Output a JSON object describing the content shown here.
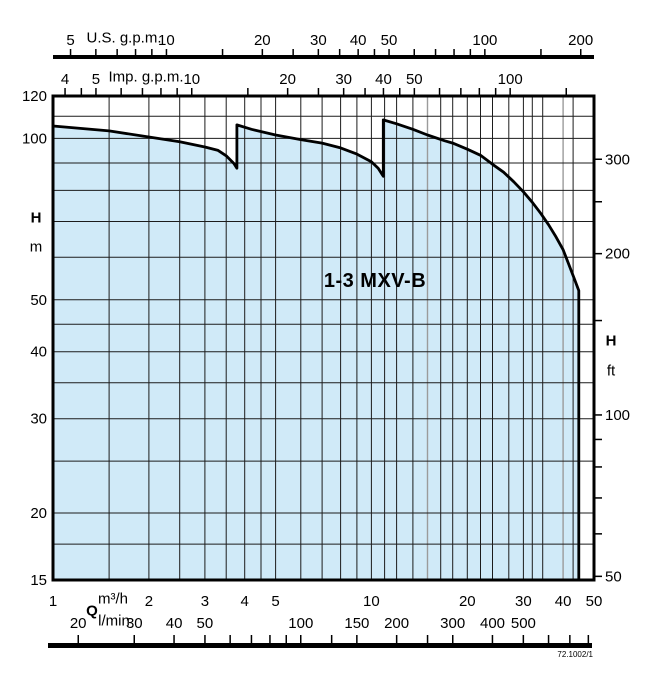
{
  "figure_code": "72.1002/1",
  "chart_data": {
    "type": "area",
    "title": "1-3 MXV-B",
    "description": "Pump family performance envelope, head H versus flow Q on log-log axes",
    "x_range_m3h": [
      1,
      50
    ],
    "y_range_m": [
      15,
      120
    ],
    "axes": {
      "us": {
        "title": "U.S. g.p.m.",
        "factor_m3h_per_unit": 0.227125,
        "ticks": [
          5,
          6,
          7,
          8,
          9,
          10,
          15,
          20,
          25,
          30,
          35,
          40,
          45,
          50,
          60,
          70,
          80,
          90,
          100,
          150,
          200
        ],
        "labels": [
          5,
          10,
          20,
          30,
          40,
          50,
          100,
          200
        ]
      },
      "imp": {
        "title": "Imp. g.p.m.",
        "factor_m3h_per_unit": 0.272766,
        "ticks": [
          4,
          4.5,
          5,
          6,
          7,
          8,
          9,
          10,
          15,
          20,
          25,
          30,
          35,
          40,
          45,
          50,
          60,
          70,
          80,
          90,
          100,
          150
        ],
        "labels": [
          4,
          5,
          10,
          20,
          30,
          40,
          50,
          100
        ]
      },
      "q": {
        "symbol": "Q",
        "unit_top": "m³/h",
        "unit_bottom": "l/min",
        "labels_m3h": [
          1,
          2,
          3,
          4,
          5,
          10,
          20,
          30,
          40,
          50
        ]
      },
      "lmin": {
        "factor_m3h_per_unit": 0.06,
        "ticks": [
          20,
          30,
          40,
          50,
          60,
          70,
          80,
          90,
          100,
          125,
          150,
          200,
          250,
          300,
          400,
          500,
          600,
          700,
          800
        ],
        "labels": [
          20,
          30,
          40,
          50,
          100,
          150,
          200,
          300,
          400,
          500
        ]
      },
      "h_left": {
        "symbol": "H",
        "unit": "m",
        "labels": [
          120,
          100,
          50,
          40,
          30,
          20,
          15
        ]
      },
      "h_right": {
        "symbol": "H",
        "unit": "ft",
        "factor_m_per_unit": 0.3048,
        "ticks": [
          50,
          60,
          70,
          80,
          90,
          100,
          150,
          200,
          250,
          300
        ],
        "labels": [
          300,
          200,
          100,
          50
        ]
      }
    },
    "grid": {
      "v_m3h_black": [
        1.5,
        2,
        2.5,
        3,
        3.5,
        4,
        4.5,
        5,
        6,
        7,
        8,
        9,
        10,
        11,
        12,
        13.5,
        16.5,
        18,
        20,
        22,
        24,
        27,
        30,
        32,
        34.5,
        43
      ],
      "v_m3h_gray": [
        15,
        40
      ],
      "h_m_black": [
        110,
        100,
        90,
        80,
        70,
        60,
        50,
        45,
        40,
        35,
        30,
        25,
        20,
        17.5
      ]
    },
    "envelope_q_h": [
      [
        1,
        105.5
      ],
      [
        1.5,
        103.3
      ],
      [
        2,
        100.6
      ],
      [
        2.5,
        98.6
      ],
      [
        3,
        96.4
      ],
      [
        3.3,
        95
      ],
      [
        3.5,
        92.8
      ],
      [
        3.7,
        89.8
      ],
      [
        3.78,
        88
      ],
      [
        3.78,
        106
      ],
      [
        4.2,
        104
      ],
      [
        5,
        101.5
      ],
      [
        6,
        99.5
      ],
      [
        7,
        98
      ],
      [
        8,
        96
      ],
      [
        9,
        93.5
      ],
      [
        10,
        90.5
      ],
      [
        10.5,
        88
      ],
      [
        10.9,
        85
      ],
      [
        10.9,
        108.3
      ],
      [
        12,
        106.5
      ],
      [
        13.5,
        104
      ],
      [
        15,
        101.5
      ],
      [
        17,
        99
      ],
      [
        18,
        98
      ],
      [
        20,
        95.5
      ],
      [
        22,
        93
      ],
      [
        24,
        89.5
      ],
      [
        26,
        86.5
      ],
      [
        28,
        83
      ],
      [
        30,
        79.5
      ],
      [
        32,
        76
      ],
      [
        34,
        72.5
      ],
      [
        36,
        69
      ],
      [
        38,
        65.5
      ],
      [
        40,
        62
      ],
      [
        42,
        57.5
      ],
      [
        43.5,
        54.5
      ],
      [
        44.8,
        52
      ],
      [
        44.8,
        15
      ]
    ],
    "colors": {
      "fill": "#d0eaf8",
      "line": "#000000",
      "grid": "#1c1c1c",
      "grid_gray": "#9b9b9b"
    }
  }
}
